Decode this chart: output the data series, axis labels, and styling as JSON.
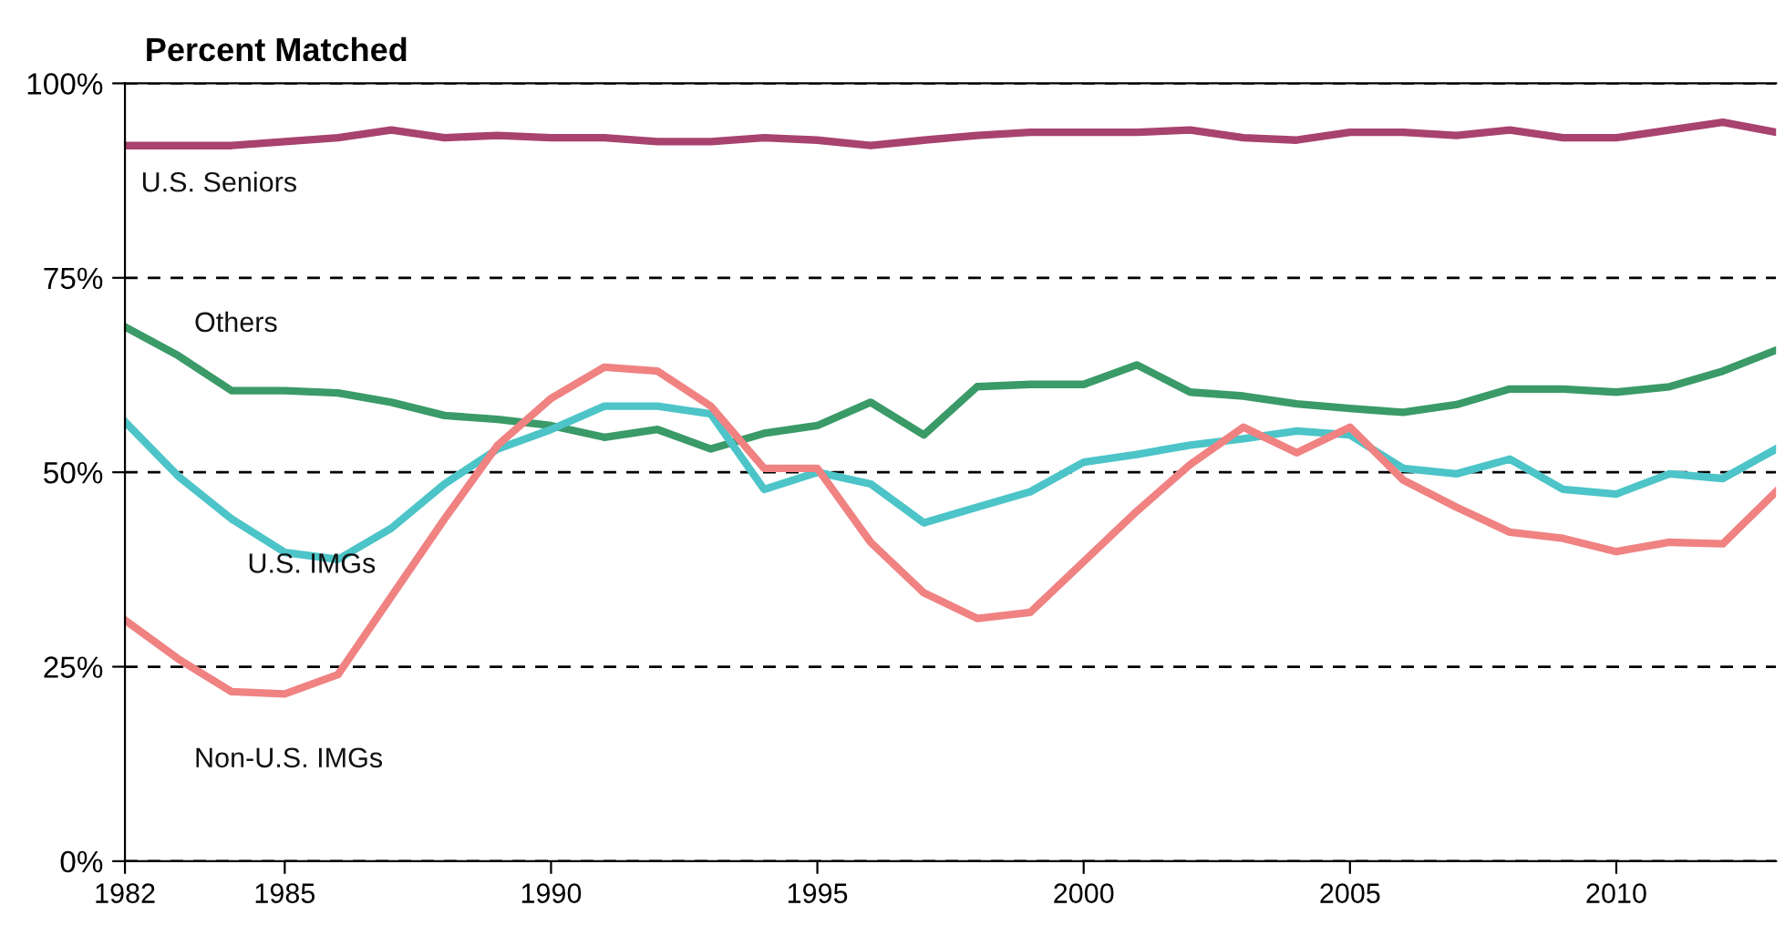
{
  "chart_data": {
    "type": "line",
    "title": "Percent Matched",
    "x": [
      1982,
      1983,
      1984,
      1985,
      1986,
      1987,
      1988,
      1989,
      1990,
      1991,
      1992,
      1993,
      1994,
      1995,
      1996,
      1997,
      1998,
      1999,
      2000,
      2001,
      2002,
      2003,
      2004,
      2005,
      2006,
      2007,
      2008,
      2009,
      2010,
      2011,
      2012,
      2013
    ],
    "xlim": [
      1982,
      2013
    ],
    "xticks": [
      1982,
      1985,
      1990,
      1995,
      2000,
      2005,
      2010
    ],
    "ylim": [
      0,
      100
    ],
    "yticks": [
      {
        "value": 0,
        "label": "0%"
      },
      {
        "value": 25,
        "label": "25%"
      },
      {
        "value": 50,
        "label": "50%"
      },
      {
        "value": 75,
        "label": "75%"
      },
      {
        "value": 100,
        "label": "100%"
      }
    ],
    "grid": "y",
    "line_style": "solid",
    "marker": "none",
    "series": [
      {
        "name": "U.S. Seniors",
        "color": "#a8426e",
        "values": [
          92,
          92,
          92,
          92.5,
          93,
          94,
          93,
          93.3,
          93,
          93,
          92.5,
          92.5,
          93,
          92.7,
          92,
          92.7,
          93.3,
          93.7,
          93.7,
          93.7,
          94,
          93,
          92.7,
          93.7,
          93.7,
          93.3,
          94,
          93,
          93,
          94,
          95,
          93.7
        ]
      },
      {
        "name": "Others",
        "color": "#3a9a68",
        "values": [
          68.7,
          65,
          60.5,
          60.5,
          60.2,
          59,
          57.3,
          56.8,
          56,
          54.5,
          55.5,
          53,
          55,
          56,
          59,
          54.8,
          61,
          61.3,
          61.3,
          63.8,
          60.3,
          59.8,
          58.8,
          58.2,
          57.7,
          58.7,
          60.7,
          60.7,
          60.3,
          61,
          63,
          65.7
        ]
      },
      {
        "name": "U.S. IMGs",
        "color": "#4cc4c8",
        "values": [
          56.5,
          49.5,
          44,
          39.7,
          38.8,
          42.8,
          48.5,
          53,
          55.5,
          58.5,
          58.5,
          57.5,
          47.8,
          50,
          48.5,
          43.5,
          45.5,
          47.5,
          51.3,
          52.3,
          53.5,
          54.3,
          55.3,
          54.8,
          50.5,
          49.8,
          51.7,
          47.8,
          47.2,
          49.8,
          49.2,
          53
        ]
      },
      {
        "name": "Non-U.S. IMGs",
        "color": "#f08282",
        "values": [
          31,
          26,
          21.8,
          21.5,
          24,
          34,
          44,
          53.5,
          59.5,
          63.5,
          63,
          58.5,
          50.5,
          50.5,
          41,
          34.5,
          31.2,
          32,
          38.5,
          45,
          51,
          55.8,
          52.5,
          55.8,
          49,
          45.5,
          42.3,
          41.5,
          39.8,
          41,
          40.8,
          47.5
        ]
      }
    ]
  }
}
